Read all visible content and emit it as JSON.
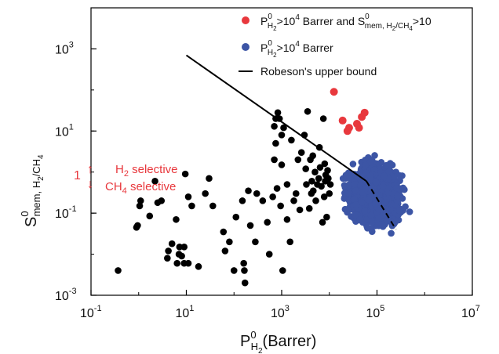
{
  "chart_data": {
    "type": "scatter",
    "x_scale": "log",
    "y_scale": "log",
    "xlim": [
      0.1,
      10000000
    ],
    "ylim": [
      0.001,
      10000
    ],
    "x_ticks": [
      {
        "value": 0.1,
        "base": "10",
        "exp": "-1"
      },
      {
        "value": 10,
        "base": "10",
        "exp": "1"
      },
      {
        "value": 1000,
        "base": "10",
        "exp": "3"
      },
      {
        "value": 100000,
        "base": "10",
        "exp": "5"
      },
      {
        "value": 10000000,
        "base": "10",
        "exp": "7"
      }
    ],
    "y_ticks": [
      {
        "value": 0.001,
        "base": "10",
        "exp": "-3"
      },
      {
        "value": 0.1,
        "base": "10",
        "exp": "-1"
      },
      {
        "value": 10,
        "base": "10",
        "exp": "1"
      },
      {
        "value": 1000,
        "base": "10",
        "exp": "3"
      }
    ],
    "xlabel": {
      "main": "P",
      "sup": "0",
      "sub": "H",
      "sub2": "2",
      "tail": "(Barrer)"
    },
    "ylabel": {
      "main": "S",
      "sup": "0",
      "sub": "mem, H",
      "sub2": "2",
      "sub3": "/CH",
      "sub4": "4"
    },
    "legend": {
      "placement": "top-right",
      "entries": [
        {
          "color": "#e8383d",
          "text_a": "P",
          "sup": "0",
          "sub": "H",
          "sub2": "2",
          "text_b": ">10",
          "text_b_sup": "4",
          "text_c": " Barrer and S",
          "sup2": "0",
          "sub3": "mem, H",
          "sub4": "2",
          "sub5": "/CH",
          "sub6": "4",
          "text_d": ">10"
        },
        {
          "color": "#3c55a5",
          "text_a": "P",
          "sup": "0",
          "sub": "H",
          "sub2": "2",
          "text_b": ">10",
          "text_b_sup": "4",
          "text_c": " Barrer"
        },
        {
          "line": true,
          "color": "#000000",
          "text": "Robeson's upper bound"
        }
      ]
    },
    "annotations": {
      "one": "1",
      "up_arrow": "↑",
      "down_arrow": "↓",
      "h2_selective": {
        "a": "H",
        "sub": "2",
        "b": " selective"
      },
      "ch4_selective": {
        "a": "CH",
        "sub": "4",
        "b": " selective"
      },
      "color": "#e8383d"
    },
    "robeson_bound": {
      "solid": [
        [
          10,
          700
        ],
        [
          60000,
          0.6
        ]
      ],
      "dashed": [
        [
          60000,
          0.6
        ],
        [
          250000,
          0.04
        ]
      ]
    },
    "series": [
      {
        "name": "Black",
        "color": "#000000",
        "points": [
          [
            0.37,
            0.004
          ],
          [
            0.9,
            0.045
          ],
          [
            0.95,
            0.05
          ],
          [
            1.05,
            0.15
          ],
          [
            1.1,
            0.2
          ],
          [
            1.7,
            0.085
          ],
          [
            2.2,
            0.6
          ],
          [
            2.5,
            0.18
          ],
          [
            3.0,
            0.2
          ],
          [
            4.0,
            0.008
          ],
          [
            4.2,
            0.012
          ],
          [
            5.0,
            0.018
          ],
          [
            6.1,
            0.07
          ],
          [
            6.4,
            0.006
          ],
          [
            7.0,
            0.01
          ],
          [
            7.2,
            0.015
          ],
          [
            8.0,
            0.009
          ],
          [
            9.0,
            0.006
          ],
          [
            9.0,
            0.015
          ],
          [
            9.5,
            0.9
          ],
          [
            11,
            0.006
          ],
          [
            11,
            0.25
          ],
          [
            13,
            0.15
          ],
          [
            18,
            0.005
          ],
          [
            25,
            0.3
          ],
          [
            30,
            0.7
          ],
          [
            36,
            0.15
          ],
          [
            60,
            0.035
          ],
          [
            65,
            0.012
          ],
          [
            80,
            0.02
          ],
          [
            100,
            0.004
          ],
          [
            110,
            0.08
          ],
          [
            150,
            0.2
          ],
          [
            160,
            0.006
          ],
          [
            165,
            0.004
          ],
          [
            170,
            0.002
          ],
          [
            200,
            0.35
          ],
          [
            220,
            0.05
          ],
          [
            280,
            0.02
          ],
          [
            300,
            0.3
          ],
          [
            400,
            0.2
          ],
          [
            500,
            0.06
          ],
          [
            550,
            0.01
          ],
          [
            650,
            0.25
          ],
          [
            700,
            2.0
          ],
          [
            700,
            13
          ],
          [
            750,
            5
          ],
          [
            750,
            20
          ],
          [
            800,
            0.4
          ],
          [
            830,
            28
          ],
          [
            900,
            20
          ],
          [
            950,
            0.15
          ],
          [
            1000,
            1.5
          ],
          [
            1000,
            8
          ],
          [
            1050,
            0.004
          ],
          [
            1100,
            12
          ],
          [
            1300,
            0.5
          ],
          [
            1300,
            0.07
          ],
          [
            1500,
            0.02
          ],
          [
            1600,
            6
          ],
          [
            1800,
            0.2
          ],
          [
            2000,
            0.3
          ],
          [
            2200,
            2
          ],
          [
            2400,
            0.12
          ],
          [
            2600,
            3
          ],
          [
            3000,
            8
          ],
          [
            3200,
            1.2
          ],
          [
            3300,
            0.5
          ],
          [
            3500,
            30
          ],
          [
            3800,
            0.13
          ],
          [
            4000,
            2
          ],
          [
            4200,
            0.3
          ],
          [
            4300,
            0.6
          ],
          [
            4500,
            2.5
          ],
          [
            4600,
            0.35
          ],
          [
            5000,
            1
          ],
          [
            5200,
            0.2
          ],
          [
            5600,
            0.5
          ],
          [
            6000,
            0.7
          ],
          [
            6200,
            4
          ],
          [
            6400,
            1.3
          ],
          [
            6800,
            0.45
          ],
          [
            7200,
            0.06
          ],
          [
            7500,
            20
          ],
          [
            7800,
            0.25
          ],
          [
            8000,
            1.6
          ],
          [
            8200,
            0.6
          ],
          [
            8400,
            0.85
          ],
          [
            8800,
            0.08
          ],
          [
            9200,
            1.1
          ],
          [
            9500,
            0.7
          ],
          [
            10000,
            0.3
          ],
          [
            10500,
            0.5
          ]
        ]
      },
      {
        "name": "Red",
        "color": "#e8383d",
        "points": [
          [
            12500,
            90
          ],
          [
            19000,
            18
          ],
          [
            24000,
            10
          ],
          [
            26000,
            12
          ],
          [
            38000,
            15
          ],
          [
            42000,
            12
          ],
          [
            48000,
            22
          ],
          [
            55000,
            28
          ]
        ]
      }
    ],
    "blue_cloud": {
      "color": "#3c55a5",
      "description_free_count": 2200,
      "x_log_range": [
        3.97,
        6.1
      ],
      "y_log_range": [
        -2.2,
        0.8
      ]
    }
  }
}
